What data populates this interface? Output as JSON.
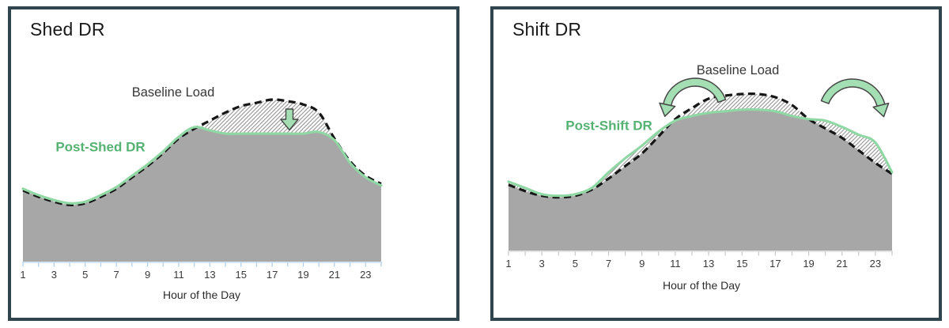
{
  "figure": {
    "panels": [
      {
        "title": "Shed DR",
        "baseline_label": "Baseline Load",
        "post_dr_label": "Post-Shed DR",
        "x_axis_label": "Hour of the Day"
      },
      {
        "title": "Shift DR",
        "baseline_label": "Baseline Load",
        "post_dr_label": "Post-Shift DR",
        "x_axis_label": "Hour of the Day"
      }
    ]
  },
  "chart_data": [
    {
      "type": "area",
      "title": "Shed DR",
      "xlabel": "Hour of the Day",
      "x": [
        1,
        2,
        3,
        4,
        5,
        6,
        7,
        8,
        9,
        10,
        11,
        12,
        13,
        14,
        15,
        16,
        17,
        18,
        19,
        20,
        21,
        22,
        23,
        24
      ],
      "x_tick_labels": [
        "1",
        "3",
        "5",
        "7",
        "9",
        "11",
        "13",
        "15",
        "17",
        "19",
        "21",
        "23"
      ],
      "ylabel": "relative load (no y-axis shown)",
      "ylim": [
        0,
        110
      ],
      "grid": false,
      "legend_position": "inline-labels",
      "series": [
        {
          "name": "Baseline Load",
          "style": "dashed-black",
          "values": [
            44,
            40,
            37,
            35,
            36,
            40,
            45,
            52,
            59,
            67,
            76,
            82,
            87,
            92,
            96,
            98,
            100,
            99,
            97,
            92,
            76,
            62,
            53,
            48
          ]
        },
        {
          "name": "Post-Shed DR",
          "style": "solid-green",
          "values": [
            45,
            41,
            38,
            36,
            37,
            41,
            46,
            53,
            60,
            68,
            77,
            83,
            81,
            79,
            79,
            79,
            79,
            79,
            79,
            80,
            75,
            61,
            52,
            47
          ]
        }
      ],
      "hatched_region": "between Baseline Load and Post-Shed DR across the peak (~hours 13-20)",
      "annotations": [
        {
          "type": "down-arrow",
          "hour": 18,
          "meaning": "load shed at peak"
        }
      ]
    },
    {
      "type": "area",
      "title": "Shift DR",
      "xlabel": "Hour of the Day",
      "x": [
        1,
        2,
        3,
        4,
        5,
        6,
        7,
        8,
        9,
        10,
        11,
        12,
        13,
        14,
        15,
        16,
        17,
        18,
        19,
        20,
        21,
        22,
        23,
        24
      ],
      "x_tick_labels": [
        "1",
        "3",
        "5",
        "7",
        "9",
        "11",
        "13",
        "15",
        "17",
        "19",
        "21",
        "23"
      ],
      "ylabel": "relative load (no y-axis shown)",
      "ylim": [
        0,
        110
      ],
      "grid": false,
      "legend_position": "inline-labels",
      "series": [
        {
          "name": "Baseline Load",
          "style": "dashed-black",
          "values": [
            42,
            38,
            35,
            34,
            35,
            39,
            46,
            54,
            62,
            73,
            84,
            91,
            97,
            99,
            100,
            100,
            98,
            93,
            84,
            78,
            72,
            64,
            56,
            49
          ]
        },
        {
          "name": "Post-Shift DR",
          "style": "solid-green",
          "values": [
            44,
            40,
            36,
            35,
            36,
            40,
            50,
            59,
            67,
            76,
            83,
            86,
            88,
            89,
            90,
            90,
            89,
            86,
            84,
            83,
            79,
            74,
            69,
            50
          ]
        }
      ],
      "hatched_region": "between curves: peak reduction (~hours 11-19) and extra shifted load on morning/evening shoulders",
      "annotations": [
        {
          "type": "curved-arrow",
          "from_hour": 13,
          "to_hour": 10,
          "meaning": "load shifted to earlier hours"
        },
        {
          "type": "curved-arrow",
          "from_hour": 19,
          "to_hour": 22,
          "meaning": "load shifted to later hours"
        }
      ]
    }
  ],
  "colors": {
    "panel_border": "#30454e",
    "area_gray": "#a7a7a7",
    "baseline_dash": "#161616",
    "post_dr_green": "#8fd7a3",
    "green_label_text": "#55b272",
    "baseline_label_text": "#373737",
    "arrow_fill": "#a3dfb3",
    "arrow_outline": "#474747",
    "hatch_line": "#9b9b9b",
    "tick_color_left_panel": "#aecdea",
    "tick_color_right_panel": "#c9c9c9"
  }
}
